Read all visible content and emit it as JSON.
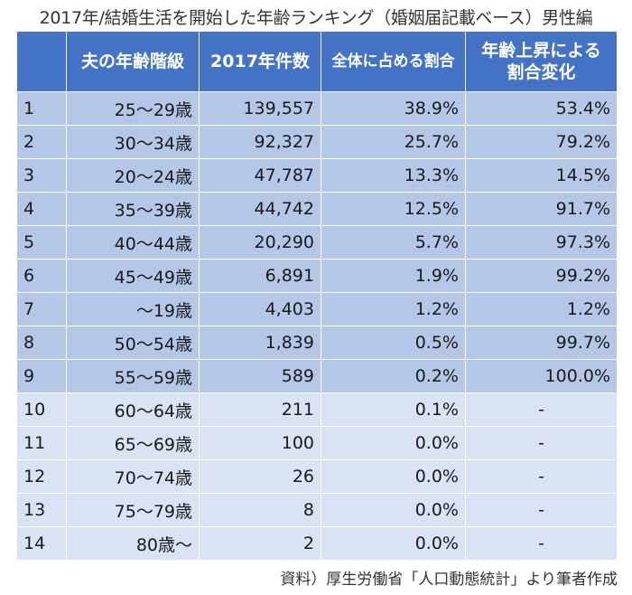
{
  "title": "2017年/結婚生活を開始した年齢ランキング（婚姻届記載ベース）男性編",
  "headers": {
    "rank": "",
    "age": "夫の年齢階級",
    "count": "2017年件数",
    "share": "全体に占める割合",
    "cumulative_line1": "年齢上昇による",
    "cumulative_line2": "割合変化"
  },
  "source": "資料）厚生労働省「人口動態統計」より筆者作成",
  "colors": {
    "header": "#4472c4",
    "row_highlight": "#b4c7e7",
    "row_pale": "#dae3f3"
  },
  "chart_data": {
    "type": "table",
    "title": "2017年/結婚生活を開始した年齢ランキング（婚姻届記載ベース）男性編",
    "columns": [
      "",
      "夫の年齢階級",
      "2017年件数",
      "全体に占める割合",
      "年齢上昇による割合変化"
    ],
    "rows": [
      {
        "rank": "1",
        "age": "25〜29歳",
        "count": "139,557",
        "share": "38.9%",
        "cumulative": "53.4%"
      },
      {
        "rank": "2",
        "age": "30〜34歳",
        "count": "92,327",
        "share": "25.7%",
        "cumulative": "79.2%"
      },
      {
        "rank": "3",
        "age": "20〜24歳",
        "count": "47,787",
        "share": "13.3%",
        "cumulative": "14.5%"
      },
      {
        "rank": "4",
        "age": "35〜39歳",
        "count": "44,742",
        "share": "12.5%",
        "cumulative": "91.7%"
      },
      {
        "rank": "5",
        "age": "40〜44歳",
        "count": "20,290",
        "share": "5.7%",
        "cumulative": "97.3%"
      },
      {
        "rank": "6",
        "age": "45〜49歳",
        "count": "6,891",
        "share": "1.9%",
        "cumulative": "99.2%"
      },
      {
        "rank": "7",
        "age": "〜19歳",
        "count": "4,403",
        "share": "1.2%",
        "cumulative": "1.2%"
      },
      {
        "rank": "8",
        "age": "50〜54歳",
        "count": "1,839",
        "share": "0.5%",
        "cumulative": "99.7%"
      },
      {
        "rank": "9",
        "age": "55〜59歳",
        "count": "589",
        "share": "0.2%",
        "cumulative": "100.0%"
      },
      {
        "rank": "10",
        "age": "60〜64歳",
        "count": "211",
        "share": "0.1%",
        "cumulative": "-"
      },
      {
        "rank": "11",
        "age": "65〜69歳",
        "count": "100",
        "share": "0.0%",
        "cumulative": "-"
      },
      {
        "rank": "12",
        "age": "70〜74歳",
        "count": "26",
        "share": "0.0%",
        "cumulative": "-"
      },
      {
        "rank": "13",
        "age": "75〜79歳",
        "count": "8",
        "share": "0.0%",
        "cumulative": "-"
      },
      {
        "rank": "14",
        "age": "80歳〜",
        "count": "2",
        "share": "0.0%",
        "cumulative": "-"
      }
    ]
  }
}
